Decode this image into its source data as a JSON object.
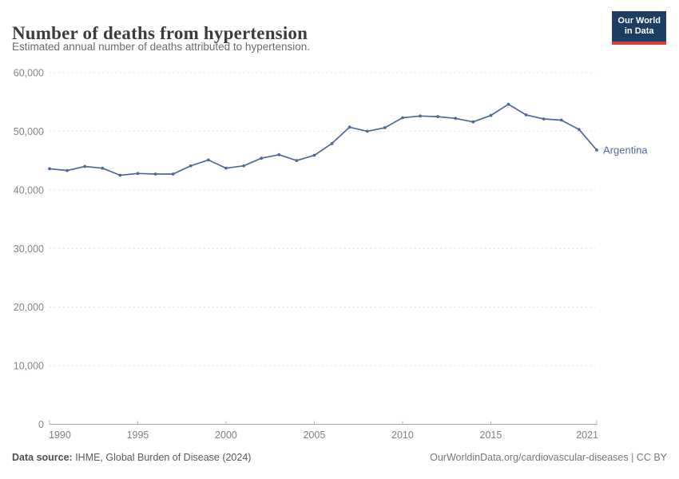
{
  "header": {
    "title": "Number of deaths from hypertension",
    "subtitle": "Estimated annual number of deaths attributed to hypertension.",
    "logo": {
      "line1": "Our World",
      "line2": "in Data"
    }
  },
  "chart_data": {
    "type": "line",
    "title": "Number of deaths from hypertension",
    "x": [
      1990,
      1991,
      1992,
      1993,
      1994,
      1995,
      1996,
      1997,
      1998,
      1999,
      2000,
      2001,
      2002,
      2003,
      2004,
      2005,
      2006,
      2007,
      2008,
      2009,
      2010,
      2011,
      2012,
      2013,
      2014,
      2015,
      2016,
      2017,
      2018,
      2019,
      2020,
      2021
    ],
    "series": [
      {
        "name": "Argentina",
        "values": [
          43600,
          43300,
          44000,
          43700,
          42500,
          42800,
          42700,
          42700,
          44100,
          45100,
          43700,
          44100,
          45400,
          46000,
          45000,
          45900,
          47900,
          50700,
          50000,
          50600,
          52300,
          52600,
          52500,
          52200,
          51600,
          52700,
          54600,
          52800,
          52100,
          51900,
          50300,
          46800
        ]
      }
    ],
    "xlabel": "",
    "ylabel": "",
    "ylim": [
      0,
      60000
    ],
    "yticks": [
      0,
      10000,
      20000,
      30000,
      40000,
      50000,
      60000
    ],
    "ytick_labels": [
      "0",
      "10,000",
      "20,000",
      "30,000",
      "40,000",
      "50,000",
      "60,000"
    ],
    "xticks": [
      1990,
      1995,
      2000,
      2005,
      2010,
      2015,
      2021
    ],
    "xtick_labels": [
      "1990",
      "1995",
      "2000",
      "2005",
      "2010",
      "2015",
      "2021"
    ],
    "grid": "horizontal-dashed",
    "legend_position": "end-of-line-label",
    "end_label": "Argentina"
  },
  "footer": {
    "source_label": "Data source:",
    "source_text": " IHME, Global Burden of Disease (2024)",
    "credit": "OurWorldinData.org/cardiovascular-diseases | CC BY"
  },
  "colors": {
    "line": "#4C6A9C",
    "end_label": "#4C6A9C",
    "grid": "#e0e0e0",
    "axis": "#a8a8a8",
    "tick_text": "#858585",
    "logo_bg": "#1d3d63",
    "logo_red": "#dc3c32",
    "title_text": "#3c3c3c",
    "subtitle_text": "#6c6c6c"
  }
}
